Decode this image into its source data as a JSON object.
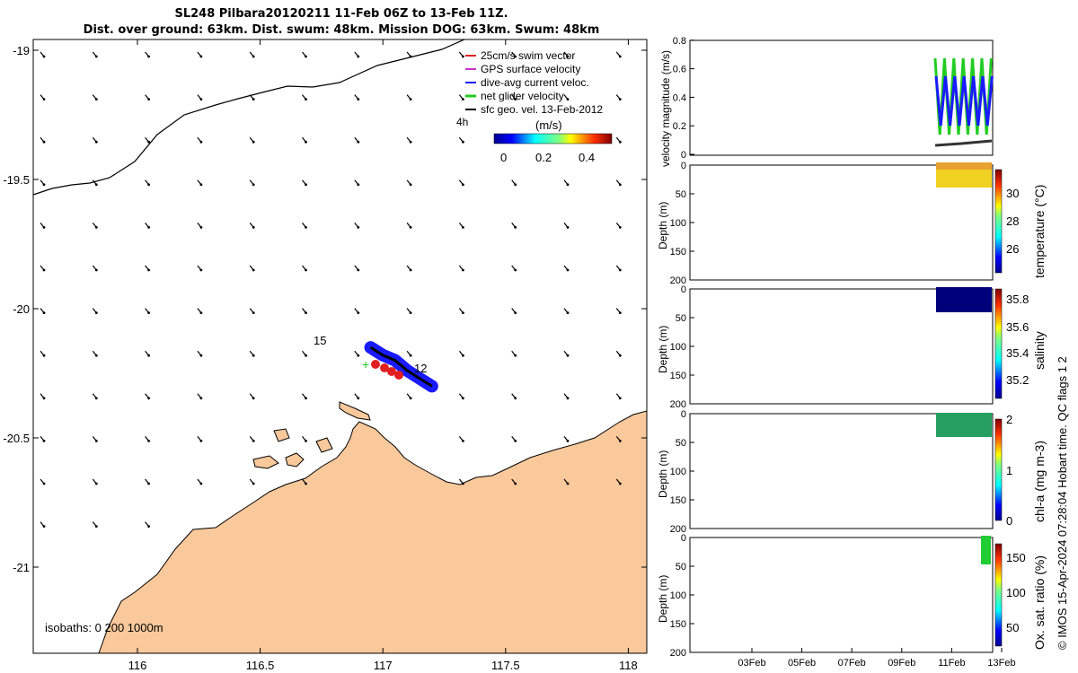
{
  "header": {
    "title": "SL248 Pilbara20120211 11-Feb 06Z to 13-Feb 11Z.",
    "subtitle": "Dist. over ground: 63km. Dist. swum: 48km. Mission DOG: 63km. Swum: 48km"
  },
  "map": {
    "lat_ticks": [
      "-19",
      "-19.5",
      "-20",
      "-20.5",
      "-21"
    ],
    "lon_ticks": [
      "116",
      "116.5",
      "117",
      "117.5",
      "118"
    ],
    "legend": [
      {
        "label": "25cm/s swim vector",
        "color": "#e02020"
      },
      {
        "label": "GPS surface velocity",
        "color": "#cc33cc"
      },
      {
        "label": "dive-avg current veloc.",
        "color": "#1a1aff"
      },
      {
        "label": "net glider velocity",
        "color": "#22cc22"
      },
      {
        "label": "sfc geo. vel. 13-Feb-2012",
        "color": "#000000"
      }
    ],
    "time_label": "4h",
    "colorbar": {
      "title": "(m/s)",
      "ticks": [
        "0",
        "0.2",
        "0.4"
      ]
    },
    "track_labels": [
      "15",
      "12"
    ],
    "isobaths_label": "isobaths: 0   200  1000m",
    "land_color": "#f9c89b"
  },
  "panels": {
    "velocity": {
      "ylabel": "velocity magnitude (m/s)",
      "yticks": [
        "0",
        "0.2",
        "0.4",
        "0.6",
        "0.8"
      ]
    },
    "temperature": {
      "ylabel": "Depth (m)",
      "cb_label": "temperature (°C)",
      "cb_ticks": [
        "26",
        "28",
        "30"
      ]
    },
    "salinity": {
      "ylabel": "Depth (m)",
      "cb_label": "salinity",
      "cb_ticks": [
        "35.2",
        "35.4",
        "35.6",
        "35.8"
      ]
    },
    "chla": {
      "ylabel": "Depth (m)",
      "cb_label": "chl-a (mg m-3)",
      "cb_ticks": [
        "0",
        "1",
        "2"
      ]
    },
    "oxygen": {
      "ylabel": "Depth (m)",
      "cb_label": "Ox. sat. ratio (%)",
      "cb_ticks": [
        "50",
        "100",
        "150"
      ]
    },
    "depth_ticks": [
      "0",
      "50",
      "100",
      "150",
      "200"
    ],
    "date_ticks": [
      "03Feb",
      "05Feb",
      "07Feb",
      "09Feb",
      "11Feb",
      "13Feb"
    ]
  },
  "footer": "© IMOS 15-Apr-2024 07:28:04 Hobart time. QC flags 1  2",
  "chart_data": [
    {
      "type": "scatter",
      "title": "SL248 Pilbara20120211 11-Feb 06Z to 13-Feb 11Z.",
      "xlabel": "",
      "ylabel": "",
      "xlim": [
        115.6,
        118.1
      ],
      "ylim": [
        -21.3,
        -18.95
      ],
      "glider_track": {
        "lon": [
          116.95,
          117.0,
          117.05,
          117.1,
          117.15,
          117.2
        ],
        "lat": [
          -20.15,
          -20.18,
          -20.2,
          -20.24,
          -20.27,
          -20.3
        ]
      }
    },
    {
      "type": "line",
      "ylabel": "velocity magnitude (m/s)",
      "ylim": [
        0,
        0.8
      ],
      "x_range": [
        "11Feb",
        "13Feb"
      ],
      "series": []
    }
  ]
}
